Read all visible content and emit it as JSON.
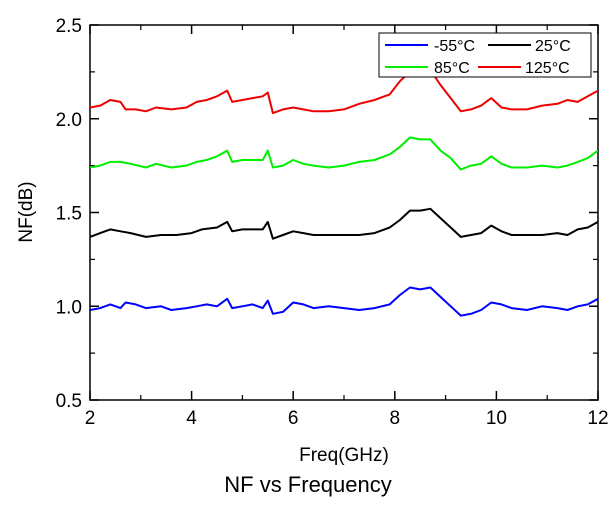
{
  "chart_data": {
    "type": "line",
    "title": "",
    "caption": "NF vs  Frequency",
    "xlabel": "Freq(GHz)",
    "ylabel": "NF(dB)",
    "xlim": [
      2,
      12
    ],
    "ylim": [
      0.5,
      2.5
    ],
    "x_ticks": [
      2,
      4,
      6,
      8,
      10,
      12
    ],
    "x_tick_labels": [
      "2",
      "4",
      "6",
      "8",
      "10",
      "12"
    ],
    "y_ticks": [
      0.5,
      1.0,
      1.5,
      2.0,
      2.5
    ],
    "y_tick_labels": [
      "0.5",
      "1.0",
      "1.5",
      "2.0",
      "2.5"
    ],
    "grid": false,
    "legend_position": "top-right",
    "series": [
      {
        "name": "-55°C",
        "color": "#0000ff",
        "points": [
          [
            2,
            0.98
          ],
          [
            2.2,
            0.99
          ],
          [
            2.4,
            1.01
          ],
          [
            2.6,
            0.99
          ],
          [
            2.7,
            1.02
          ],
          [
            2.9,
            1.01
          ],
          [
            3.1,
            0.99
          ],
          [
            3.4,
            1.0
          ],
          [
            3.6,
            0.98
          ],
          [
            3.9,
            0.99
          ],
          [
            4.1,
            1.0
          ],
          [
            4.3,
            1.01
          ],
          [
            4.5,
            1.0
          ],
          [
            4.7,
            1.04
          ],
          [
            4.8,
            0.99
          ],
          [
            5.0,
            1.0
          ],
          [
            5.2,
            1.01
          ],
          [
            5.4,
            0.99
          ],
          [
            5.5,
            1.03
          ],
          [
            5.6,
            0.96
          ],
          [
            5.8,
            0.97
          ],
          [
            6.0,
            1.02
          ],
          [
            6.2,
            1.01
          ],
          [
            6.4,
            0.99
          ],
          [
            6.7,
            1.0
          ],
          [
            7.0,
            0.99
          ],
          [
            7.3,
            0.98
          ],
          [
            7.6,
            0.99
          ],
          [
            7.9,
            1.01
          ],
          [
            8.1,
            1.06
          ],
          [
            8.3,
            1.1
          ],
          [
            8.5,
            1.09
          ],
          [
            8.7,
            1.1
          ],
          [
            8.9,
            1.05
          ],
          [
            9.1,
            1.0
          ],
          [
            9.3,
            0.95
          ],
          [
            9.5,
            0.96
          ],
          [
            9.7,
            0.98
          ],
          [
            9.9,
            1.02
          ],
          [
            10.1,
            1.01
          ],
          [
            10.3,
            0.99
          ],
          [
            10.6,
            0.98
          ],
          [
            10.9,
            1.0
          ],
          [
            11.2,
            0.99
          ],
          [
            11.4,
            0.98
          ],
          [
            11.6,
            1.0
          ],
          [
            11.8,
            1.01
          ],
          [
            12.0,
            1.04
          ]
        ]
      },
      {
        "name": "25°C",
        "color": "#000000",
        "points": [
          [
            2,
            1.37
          ],
          [
            2.2,
            1.39
          ],
          [
            2.4,
            1.41
          ],
          [
            2.6,
            1.4
          ],
          [
            2.8,
            1.39
          ],
          [
            3.1,
            1.37
          ],
          [
            3.4,
            1.38
          ],
          [
            3.7,
            1.38
          ],
          [
            4.0,
            1.39
          ],
          [
            4.2,
            1.41
          ],
          [
            4.5,
            1.42
          ],
          [
            4.7,
            1.45
          ],
          [
            4.8,
            1.4
          ],
          [
            5.0,
            1.41
          ],
          [
            5.2,
            1.41
          ],
          [
            5.4,
            1.41
          ],
          [
            5.5,
            1.45
          ],
          [
            5.6,
            1.36
          ],
          [
            5.8,
            1.38
          ],
          [
            6.0,
            1.4
          ],
          [
            6.2,
            1.39
          ],
          [
            6.4,
            1.38
          ],
          [
            6.7,
            1.38
          ],
          [
            7.0,
            1.38
          ],
          [
            7.3,
            1.38
          ],
          [
            7.6,
            1.39
          ],
          [
            7.9,
            1.42
          ],
          [
            8.1,
            1.46
          ],
          [
            8.3,
            1.51
          ],
          [
            8.5,
            1.51
          ],
          [
            8.7,
            1.52
          ],
          [
            8.9,
            1.47
          ],
          [
            9.1,
            1.42
          ],
          [
            9.3,
            1.37
          ],
          [
            9.5,
            1.38
          ],
          [
            9.7,
            1.39
          ],
          [
            9.9,
            1.43
          ],
          [
            10.1,
            1.4
          ],
          [
            10.3,
            1.38
          ],
          [
            10.6,
            1.38
          ],
          [
            10.9,
            1.38
          ],
          [
            11.2,
            1.39
          ],
          [
            11.4,
            1.38
          ],
          [
            11.6,
            1.41
          ],
          [
            11.8,
            1.42
          ],
          [
            12.0,
            1.45
          ]
        ]
      },
      {
        "name": "85°C",
        "color": "#00ee00",
        "points": [
          [
            2,
            1.74
          ],
          [
            2.2,
            1.75
          ],
          [
            2.4,
            1.77
          ],
          [
            2.6,
            1.77
          ],
          [
            2.8,
            1.76
          ],
          [
            3.1,
            1.74
          ],
          [
            3.3,
            1.76
          ],
          [
            3.6,
            1.74
          ],
          [
            3.9,
            1.75
          ],
          [
            4.1,
            1.77
          ],
          [
            4.3,
            1.78
          ],
          [
            4.5,
            1.8
          ],
          [
            4.7,
            1.83
          ],
          [
            4.8,
            1.77
          ],
          [
            5.0,
            1.78
          ],
          [
            5.2,
            1.78
          ],
          [
            5.4,
            1.78
          ],
          [
            5.5,
            1.83
          ],
          [
            5.6,
            1.74
          ],
          [
            5.8,
            1.75
          ],
          [
            6.0,
            1.78
          ],
          [
            6.2,
            1.76
          ],
          [
            6.4,
            1.75
          ],
          [
            6.7,
            1.74
          ],
          [
            7.0,
            1.75
          ],
          [
            7.3,
            1.77
          ],
          [
            7.6,
            1.78
          ],
          [
            7.9,
            1.81
          ],
          [
            8.1,
            1.85
          ],
          [
            8.3,
            1.9
          ],
          [
            8.5,
            1.89
          ],
          [
            8.7,
            1.89
          ],
          [
            8.9,
            1.83
          ],
          [
            9.1,
            1.79
          ],
          [
            9.3,
            1.73
          ],
          [
            9.5,
            1.75
          ],
          [
            9.7,
            1.76
          ],
          [
            9.9,
            1.8
          ],
          [
            10.1,
            1.76
          ],
          [
            10.3,
            1.74
          ],
          [
            10.6,
            1.74
          ],
          [
            10.9,
            1.75
          ],
          [
            11.2,
            1.74
          ],
          [
            11.4,
            1.75
          ],
          [
            11.6,
            1.77
          ],
          [
            11.8,
            1.79
          ],
          [
            12.0,
            1.83
          ]
        ]
      },
      {
        "name": "125°C",
        "color": "#ee0000",
        "points": [
          [
            2,
            2.06
          ],
          [
            2.2,
            2.07
          ],
          [
            2.4,
            2.1
          ],
          [
            2.6,
            2.09
          ],
          [
            2.7,
            2.05
          ],
          [
            2.9,
            2.05
          ],
          [
            3.1,
            2.04
          ],
          [
            3.3,
            2.06
          ],
          [
            3.6,
            2.05
          ],
          [
            3.9,
            2.06
          ],
          [
            4.1,
            2.09
          ],
          [
            4.3,
            2.1
          ],
          [
            4.5,
            2.12
          ],
          [
            4.7,
            2.15
          ],
          [
            4.8,
            2.09
          ],
          [
            5.0,
            2.1
          ],
          [
            5.2,
            2.11
          ],
          [
            5.4,
            2.12
          ],
          [
            5.5,
            2.14
          ],
          [
            5.6,
            2.03
          ],
          [
            5.8,
            2.05
          ],
          [
            6.0,
            2.06
          ],
          [
            6.2,
            2.05
          ],
          [
            6.4,
            2.04
          ],
          [
            6.7,
            2.04
          ],
          [
            7.0,
            2.05
          ],
          [
            7.3,
            2.08
          ],
          [
            7.6,
            2.1
          ],
          [
            7.9,
            2.13
          ],
          [
            8.1,
            2.2
          ],
          [
            8.3,
            2.25
          ],
          [
            8.5,
            2.27
          ],
          [
            8.7,
            2.26
          ],
          [
            8.9,
            2.18
          ],
          [
            9.1,
            2.11
          ],
          [
            9.3,
            2.04
          ],
          [
            9.5,
            2.05
          ],
          [
            9.7,
            2.07
          ],
          [
            9.9,
            2.11
          ],
          [
            10.1,
            2.06
          ],
          [
            10.3,
            2.05
          ],
          [
            10.6,
            2.05
          ],
          [
            10.9,
            2.07
          ],
          [
            11.2,
            2.08
          ],
          [
            11.4,
            2.1
          ],
          [
            11.6,
            2.09
          ],
          [
            11.8,
            2.12
          ],
          [
            12.0,
            2.15
          ]
        ]
      }
    ]
  }
}
